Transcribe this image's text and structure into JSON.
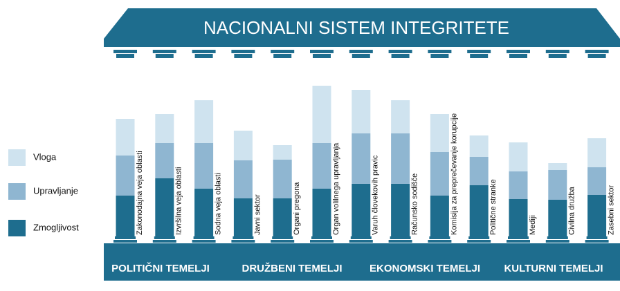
{
  "chart_data": {
    "type": "bar",
    "stacked": true,
    "title": "NACIONALNI SISTEM INTEGRITETE",
    "categories": [
      "Zakonodajna veja oblasti",
      "Izvršilna veja oblasti",
      "Sodna veja oblasti",
      "Javni sektor",
      "Organi pregona",
      "Organ volilnega upravljanja",
      "Varuh človekovih pravic",
      "Računsko sodišče",
      "Komisija za preprečevanje korupcije",
      "Politične stranke",
      "Mediji",
      "Civilna družba",
      "Zasebni sektor"
    ],
    "series": [
      {
        "name": "Zmogljivost",
        "color": "#1e6d8e",
        "values": [
          59,
          84,
          69,
          55,
          55,
          69,
          76,
          76,
          59,
          74,
          54,
          53,
          60
        ]
      },
      {
        "name": "Upravljanje",
        "color": "#8fb6d1",
        "values": [
          58,
          51,
          66,
          55,
          56,
          66,
          73,
          73,
          63,
          41,
          40,
          43,
          40
        ]
      },
      {
        "name": "Vloga",
        "color": "#cfe3ef",
        "values": [
          53,
          42,
          62,
          43,
          21,
          83,
          63,
          48,
          55,
          31,
          42,
          10,
          42
        ]
      }
    ],
    "group_labels": [
      "POLITIČNI TEMELJI",
      "DRUŽBENI TEMELJI",
      "EKONOMSKI TEMELJI",
      "KULTURNI TEMELJI"
    ]
  }
}
